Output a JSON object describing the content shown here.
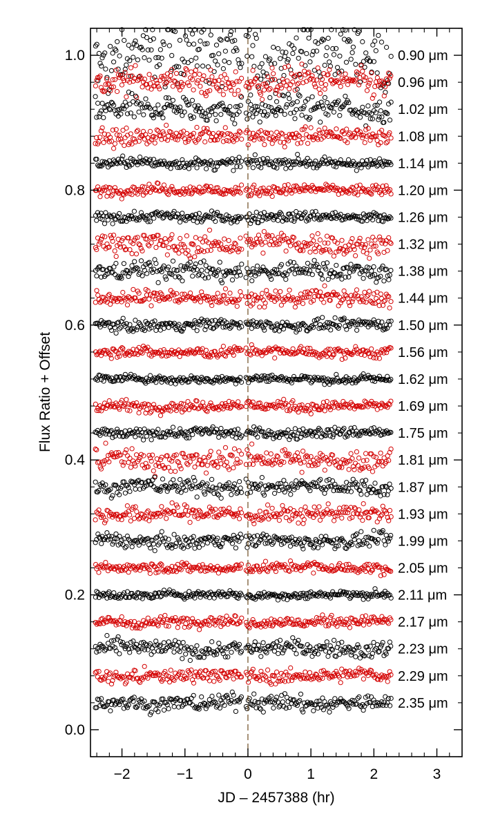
{
  "chart_data": {
    "type": "scatter",
    "xlabel": "JD –  2457388 (hr)",
    "ylabel": "Flux Ratio + Offset",
    "xlim": [
      -2.5,
      3.4
    ],
    "ylim": [
      -0.04,
      1.04
    ],
    "x_ticks": [
      -2,
      -1,
      0,
      1,
      2,
      3
    ],
    "x_tick_labels": [
      "−2",
      "−1",
      "0",
      "1",
      "2",
      "3"
    ],
    "y_ticks": [
      0.0,
      0.2,
      0.4,
      0.6,
      0.8,
      1.0
    ],
    "y_tick_labels": [
      "0.0",
      "0.2",
      "0.4",
      "0.6",
      "0.8",
      "1.0"
    ],
    "x_range_observed": [
      -2.42,
      2.27
    ],
    "reference_line_x": 0,
    "marker": "open-circle",
    "colors": [
      "#000000",
      "#d40000"
    ],
    "series": [
      {
        "label": "0.90 μm",
        "offset": 1.0,
        "scatter": 0.022,
        "color": "#000000"
      },
      {
        "label": "0.96 μm",
        "offset": 0.96,
        "scatter": 0.01,
        "color": "#d40000"
      },
      {
        "label": "1.02 μm",
        "offset": 0.92,
        "scatter": 0.009,
        "color": "#000000"
      },
      {
        "label": "1.08 μm",
        "offset": 0.88,
        "scatter": 0.006,
        "color": "#d40000"
      },
      {
        "label": "1.14 μm",
        "offset": 0.84,
        "scatter": 0.004,
        "color": "#000000"
      },
      {
        "label": "1.20 μm",
        "offset": 0.8,
        "scatter": 0.004,
        "color": "#d40000"
      },
      {
        "label": "1.26 μm",
        "offset": 0.76,
        "scatter": 0.004,
        "color": "#000000"
      },
      {
        "label": "1.32 μm",
        "offset": 0.72,
        "scatter": 0.008,
        "color": "#d40000"
      },
      {
        "label": "1.38 μm",
        "offset": 0.68,
        "scatter": 0.007,
        "color": "#000000"
      },
      {
        "label": "1.44 μm",
        "offset": 0.64,
        "scatter": 0.006,
        "color": "#d40000"
      },
      {
        "label": "1.50 μm",
        "offset": 0.6,
        "scatter": 0.004,
        "color": "#000000"
      },
      {
        "label": "1.56 μm",
        "offset": 0.56,
        "scatter": 0.004,
        "color": "#d40000"
      },
      {
        "label": "1.62 μm",
        "offset": 0.52,
        "scatter": 0.003,
        "color": "#000000"
      },
      {
        "label": "1.69 μm",
        "offset": 0.48,
        "scatter": 0.004,
        "color": "#d40000"
      },
      {
        "label": "1.75 μm",
        "offset": 0.44,
        "scatter": 0.004,
        "color": "#000000"
      },
      {
        "label": "1.81 μm",
        "offset": 0.4,
        "scatter": 0.008,
        "color": "#d40000"
      },
      {
        "label": "1.87 μm",
        "offset": 0.36,
        "scatter": 0.006,
        "color": "#000000"
      },
      {
        "label": "1.93 μm",
        "offset": 0.32,
        "scatter": 0.006,
        "color": "#d40000"
      },
      {
        "label": "1.99 μm",
        "offset": 0.28,
        "scatter": 0.005,
        "color": "#000000"
      },
      {
        "label": "2.05 μm",
        "offset": 0.24,
        "scatter": 0.004,
        "color": "#d40000"
      },
      {
        "label": "2.11 μm",
        "offset": 0.2,
        "scatter": 0.003,
        "color": "#000000"
      },
      {
        "label": "2.17 μm",
        "offset": 0.16,
        "scatter": 0.004,
        "color": "#d40000"
      },
      {
        "label": "2.23 μm",
        "offset": 0.12,
        "scatter": 0.006,
        "color": "#000000"
      },
      {
        "label": "2.29 μm",
        "offset": 0.08,
        "scatter": 0.005,
        "color": "#d40000"
      },
      {
        "label": "2.35 μm",
        "offset": 0.04,
        "scatter": 0.006,
        "color": "#000000"
      }
    ]
  }
}
